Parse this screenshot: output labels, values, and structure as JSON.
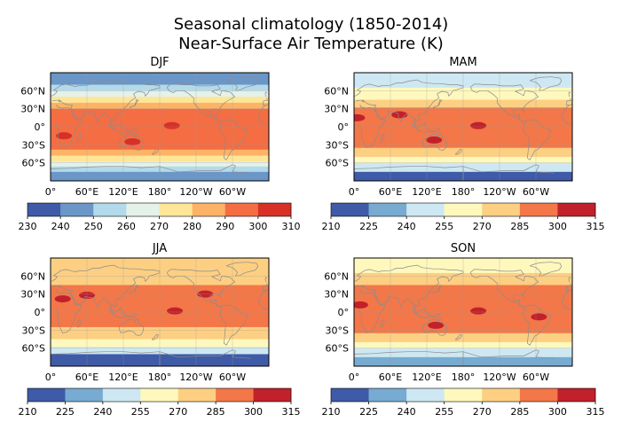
{
  "figure": {
    "title_line1": "Seasonal climatology  (1850-2014)",
    "title_line2": "Near-Surface Air Temperature (K)"
  },
  "chart_data": [
    {
      "type": "heatmap",
      "title": "DJF",
      "projection": "PlateCarree, central longitude 180°",
      "xticklabels": [
        "120°E",
        "180°",
        "120°W",
        "60°W",
        "0°",
        "60°E"
      ],
      "yticklabels": [
        "60°N",
        "30°N",
        "0°",
        "30°S",
        "60°S"
      ],
      "lat_band_means": [
        {
          "lat_from": 90,
          "lat_to": 70,
          "value": 243
        },
        {
          "lat_from": 70,
          "lat_to": 60,
          "value": 252
        },
        {
          "lat_from": 60,
          "lat_to": 50,
          "value": 263
        },
        {
          "lat_from": 50,
          "lat_to": 40,
          "value": 274
        },
        {
          "lat_from": 40,
          "lat_to": 30,
          "value": 285
        },
        {
          "lat_from": 30,
          "lat_to": -38,
          "value": 295
        },
        {
          "lat_from": -38,
          "lat_to": -48,
          "value": 285
        },
        {
          "lat_from": -48,
          "lat_to": -58,
          "value": 275
        },
        {
          "lat_from": -58,
          "lat_to": -66,
          "value": 265
        },
        {
          "lat_from": -66,
          "lat_to": -75,
          "value": 255
        },
        {
          "lat_from": -75,
          "lat_to": -90,
          "value": 245
        }
      ],
      "warm_spots": [
        {
          "lon": 135,
          "lat": -25,
          "value": 305
        },
        {
          "lon": 200,
          "lat": 2,
          "value": 302
        },
        {
          "lon": 22,
          "lat": -15,
          "value": 302
        }
      ],
      "colorbar": {
        "levels": [
          230,
          240,
          250,
          260,
          270,
          280,
          290,
          300,
          310
        ],
        "tick_labels": [
          "230",
          "240",
          "250",
          "260",
          "270",
          "280",
          "290",
          "300",
          "310"
        ],
        "colors": [
          "#3f5aa7",
          "#6b96c8",
          "#b2daea",
          "#e4f2ea",
          "#fee699",
          "#fdb366",
          "#f46d43",
          "#d73027"
        ]
      }
    },
    {
      "type": "heatmap",
      "title": "MAM",
      "projection": "PlateCarree, central longitude 180°",
      "xticklabels": [
        "120°E",
        "180°",
        "120°W",
        "60°W",
        "0°",
        "60°E"
      ],
      "yticklabels": [
        "60°N",
        "30°N",
        "0°",
        "30°S",
        "60°S"
      ],
      "lat_band_means": [
        {
          "lat_from": 90,
          "lat_to": 65,
          "value": 250
        },
        {
          "lat_from": 65,
          "lat_to": 45,
          "value": 263
        },
        {
          "lat_from": 45,
          "lat_to": 32,
          "value": 278
        },
        {
          "lat_from": 32,
          "lat_to": -35,
          "value": 292
        },
        {
          "lat_from": -35,
          "lat_to": -50,
          "value": 278
        },
        {
          "lat_from": -50,
          "lat_to": -60,
          "value": 262
        },
        {
          "lat_from": -60,
          "lat_to": -75,
          "value": 245
        },
        {
          "lat_from": -75,
          "lat_to": -90,
          "value": 220
        }
      ],
      "warm_spots": [
        {
          "lon": 5,
          "lat": 15,
          "value": 304
        },
        {
          "lon": 75,
          "lat": 20,
          "value": 303
        },
        {
          "lon": 205,
          "lat": 2,
          "value": 301
        },
        {
          "lon": 132,
          "lat": -22,
          "value": 301
        }
      ],
      "colorbar": {
        "levels": [
          210,
          225,
          240,
          255,
          270,
          285,
          300,
          315
        ],
        "tick_labels": [
          "210",
          "225",
          "240",
          "255",
          "270",
          "285",
          "300",
          "315"
        ],
        "colors": [
          "#3f5aa7",
          "#77abd1",
          "#cde8f2",
          "#fff8bd",
          "#fdcf82",
          "#f37748",
          "#c1212b"
        ]
      }
    },
    {
      "type": "heatmap",
      "title": "JJA",
      "projection": "PlateCarree, central longitude 180°",
      "xticklabels": [
        "120°E",
        "180°",
        "120°W",
        "60°W",
        "0°",
        "60°E"
      ],
      "yticklabels": [
        "60°N",
        "30°N",
        "0°",
        "30°S",
        "60°S"
      ],
      "lat_band_means": [
        {
          "lat_from": 90,
          "lat_to": 45,
          "value": 278
        },
        {
          "lat_from": 45,
          "lat_to": -25,
          "value": 294
        },
        {
          "lat_from": -25,
          "lat_to": -45,
          "value": 280
        },
        {
          "lat_from": -45,
          "lat_to": -58,
          "value": 262
        },
        {
          "lat_from": -58,
          "lat_to": -70,
          "value": 245
        },
        {
          "lat_from": -70,
          "lat_to": -90,
          "value": 218
        }
      ],
      "warm_spots": [
        {
          "lon": 20,
          "lat": 22,
          "value": 307
        },
        {
          "lon": 60,
          "lat": 28,
          "value": 306
        },
        {
          "lon": 255,
          "lat": 30,
          "value": 303
        },
        {
          "lon": 205,
          "lat": 2,
          "value": 301
        }
      ],
      "colorbar": {
        "levels": [
          210,
          225,
          240,
          255,
          270,
          285,
          300,
          315
        ],
        "tick_labels": [
          "210",
          "225",
          "240",
          "255",
          "270",
          "285",
          "300",
          "315"
        ],
        "colors": [
          "#3f5aa7",
          "#77abd1",
          "#cde8f2",
          "#fff8bd",
          "#fdcf82",
          "#f37748",
          "#c1212b"
        ]
      }
    },
    {
      "type": "heatmap",
      "title": "SON",
      "projection": "PlateCarree, central longitude 180°",
      "xticklabels": [
        "120°E",
        "180°",
        "120°W",
        "60°W",
        "0°",
        "60°E"
      ],
      "yticklabels": [
        "60°N",
        "30°N",
        "0°",
        "30°S",
        "60°S"
      ],
      "lat_band_means": [
        {
          "lat_from": 90,
          "lat_to": 65,
          "value": 258
        },
        {
          "lat_from": 65,
          "lat_to": 45,
          "value": 272
        },
        {
          "lat_from": 45,
          "lat_to": -35,
          "value": 292
        },
        {
          "lat_from": -35,
          "lat_to": -50,
          "value": 278
        },
        {
          "lat_from": -50,
          "lat_to": -60,
          "value": 262
        },
        {
          "lat_from": -60,
          "lat_to": -75,
          "value": 245
        },
        {
          "lat_from": -75,
          "lat_to": -90,
          "value": 232
        }
      ],
      "warm_spots": [
        {
          "lon": 135,
          "lat": -22,
          "value": 302
        },
        {
          "lon": 305,
          "lat": -8,
          "value": 302
        },
        {
          "lon": 205,
          "lat": 2,
          "value": 301
        },
        {
          "lon": 10,
          "lat": 12,
          "value": 301
        }
      ],
      "colorbar": {
        "levels": [
          210,
          225,
          240,
          255,
          270,
          285,
          300,
          315
        ],
        "tick_labels": [
          "210",
          "225",
          "240",
          "255",
          "270",
          "285",
          "300",
          "315"
        ],
        "colors": [
          "#3f5aa7",
          "#77abd1",
          "#cde8f2",
          "#fff8bd",
          "#fdcf82",
          "#f37748",
          "#c1212b"
        ]
      }
    }
  ]
}
